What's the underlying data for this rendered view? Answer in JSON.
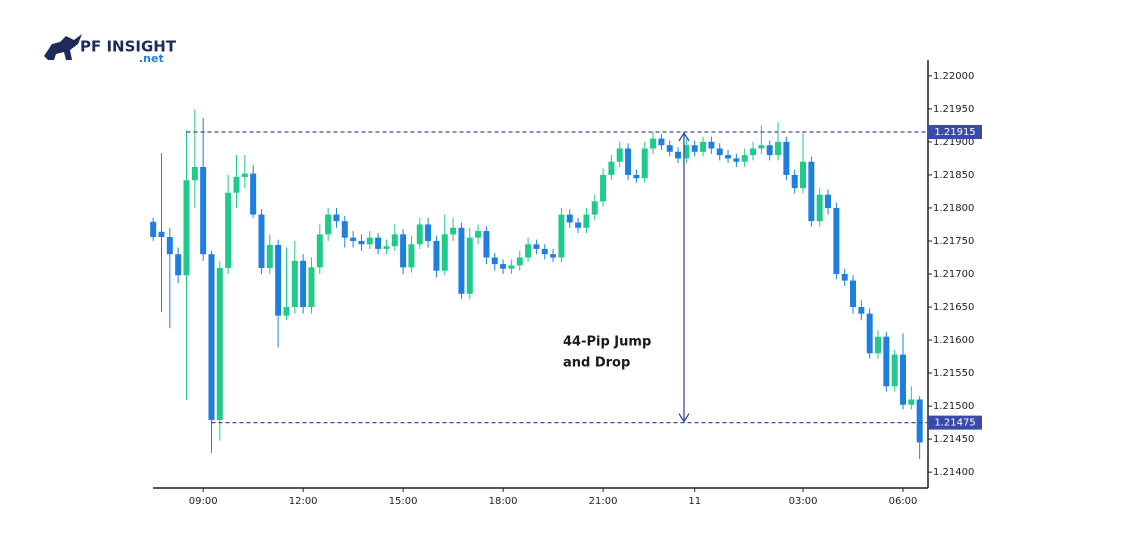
{
  "logo": {
    "name": "PF INSIGHT",
    "suffix": ".net"
  },
  "chart_data": {
    "type": "candlestick",
    "up_color": "#1fca8a",
    "down_color": "#1f7fe0",
    "ylim": [
      1.21376,
      1.22024
    ],
    "yticks": [
      {
        "value": 1.214,
        "label": "1.21400"
      },
      {
        "value": 1.2145,
        "label": "1.21450"
      },
      {
        "value": 1.215,
        "label": "1.21500"
      },
      {
        "value": 1.2155,
        "label": "1.21550"
      },
      {
        "value": 1.216,
        "label": "1.21600"
      },
      {
        "value": 1.2165,
        "label": "1.21650"
      },
      {
        "value": 1.217,
        "label": "1.21700"
      },
      {
        "value": 1.2175,
        "label": "1.21750"
      },
      {
        "value": 1.218,
        "label": "1.21800"
      },
      {
        "value": 1.2185,
        "label": "1.21850"
      },
      {
        "value": 1.219,
        "label": "1.21900"
      },
      {
        "value": 1.2195,
        "label": "1.21950"
      },
      {
        "value": 1.22,
        "label": "1.22000"
      }
    ],
    "xlim": [
      -0.5,
      93
    ],
    "xticks": [
      {
        "value": 6,
        "label": "09:00"
      },
      {
        "value": 18,
        "label": "12:00"
      },
      {
        "value": 30,
        "label": "15:00"
      },
      {
        "value": 42,
        "label": "18:00"
      },
      {
        "value": 54,
        "label": "21:00"
      },
      {
        "value": 65,
        "label": "11"
      },
      {
        "value": 78,
        "label": "03:00"
      },
      {
        "value": 90,
        "label": "06:00"
      }
    ],
    "levels": [
      {
        "value": 1.21915,
        "label": "1.21915",
        "color": "#3a4aa8"
      },
      {
        "value": 1.21475,
        "label": "1.21475",
        "color": "#3a4aa8"
      }
    ],
    "annotation": [
      "44-Pip Jump",
      "and Drop"
    ],
    "ohlc": [
      [
        1.21779,
        1.21785,
        1.2175,
        1.21756
      ],
      [
        1.21764,
        1.21883,
        1.21642,
        1.21756
      ],
      [
        1.21756,
        1.2177,
        1.21618,
        1.2173
      ],
      [
        1.2173,
        1.2174,
        1.21686,
        1.21698
      ],
      [
        1.21698,
        1.21918,
        1.21509,
        1.21842
      ],
      [
        1.21842,
        1.21949,
        1.218,
        1.21862
      ],
      [
        1.21862,
        1.21936,
        1.2172,
        1.2173
      ],
      [
        1.2173,
        1.21735,
        1.21429,
        1.21479
      ],
      [
        1.21479,
        1.2172,
        1.21448,
        1.21709
      ],
      [
        1.21709,
        1.2185,
        1.217,
        1.21823
      ],
      [
        1.21823,
        1.2188,
        1.218,
        1.21847
      ],
      [
        1.21847,
        1.2188,
        1.2183,
        1.21852
      ],
      [
        1.21852,
        1.21865,
        1.21785,
        1.2179
      ],
      [
        1.2179,
        1.21798,
        1.217,
        1.21709
      ],
      [
        1.21709,
        1.2176,
        1.217,
        1.21744
      ],
      [
        1.21744,
        1.21752,
        1.21589,
        1.21637
      ],
      [
        1.21637,
        1.2174,
        1.2163,
        1.2165
      ],
      [
        1.2165,
        1.2175,
        1.2164,
        1.2172
      ],
      [
        1.2172,
        1.2173,
        1.2164,
        1.2165
      ],
      [
        1.2165,
        1.21725,
        1.2164,
        1.2171
      ],
      [
        1.2171,
        1.21775,
        1.217,
        1.2176
      ],
      [
        1.2176,
        1.218,
        1.2175,
        1.2179
      ],
      [
        1.2179,
        1.218,
        1.2177,
        1.2178
      ],
      [
        1.2178,
        1.21788,
        1.2174,
        1.21755
      ],
      [
        1.21755,
        1.21765,
        1.2174,
        1.2175
      ],
      [
        1.2175,
        1.2176,
        1.21735,
        1.21745
      ],
      [
        1.21745,
        1.21765,
        1.21738,
        1.21755
      ],
      [
        1.21755,
        1.21762,
        1.2173,
        1.21738
      ],
      [
        1.21738,
        1.21752,
        1.2173,
        1.21742
      ],
      [
        1.21742,
        1.21775,
        1.21735,
        1.2176
      ],
      [
        1.2176,
        1.21768,
        1.217,
        1.2171
      ],
      [
        1.2171,
        1.21758,
        1.21702,
        1.21745
      ],
      [
        1.21745,
        1.21785,
        1.21738,
        1.21775
      ],
      [
        1.21775,
        1.21785,
        1.2174,
        1.2175
      ],
      [
        1.2175,
        1.21758,
        1.21695,
        1.21705
      ],
      [
        1.21705,
        1.2179,
        1.21698,
        1.2176
      ],
      [
        1.2176,
        1.21785,
        1.2175,
        1.2177
      ],
      [
        1.2177,
        1.21778,
        1.21662,
        1.2167
      ],
      [
        1.2167,
        1.2177,
        1.21662,
        1.21755
      ],
      [
        1.21755,
        1.21775,
        1.21745,
        1.21765
      ],
      [
        1.21765,
        1.21772,
        1.21715,
        1.21725
      ],
      [
        1.21725,
        1.21732,
        1.21705,
        1.21715
      ],
      [
        1.21715,
        1.21722,
        1.217,
        1.21708
      ],
      [
        1.21708,
        1.21722,
        1.217,
        1.21713
      ],
      [
        1.21713,
        1.21735,
        1.21705,
        1.21725
      ],
      [
        1.21725,
        1.21755,
        1.21718,
        1.21745
      ],
      [
        1.21745,
        1.21752,
        1.2173,
        1.21738
      ],
      [
        1.21738,
        1.21745,
        1.21722,
        1.2173
      ],
      [
        1.2173,
        1.21738,
        1.21718,
        1.21725
      ],
      [
        1.21725,
        1.218,
        1.21718,
        1.2179
      ],
      [
        1.2179,
        1.21798,
        1.2177,
        1.21778
      ],
      [
        1.21778,
        1.21785,
        1.21762,
        1.2177
      ],
      [
        1.2177,
        1.218,
        1.21762,
        1.2179
      ],
      [
        1.2179,
        1.2182,
        1.21782,
        1.2181
      ],
      [
        1.2181,
        1.2186,
        1.21802,
        1.2185
      ],
      [
        1.2185,
        1.2188,
        1.21842,
        1.2187
      ],
      [
        1.2187,
        1.219,
        1.21862,
        1.2189
      ],
      [
        1.2189,
        1.21898,
        1.21842,
        1.2185
      ],
      [
        1.2185,
        1.21858,
        1.21838,
        1.21845
      ],
      [
        1.21845,
        1.219,
        1.21838,
        1.2189
      ],
      [
        1.2189,
        1.21915,
        1.21882,
        1.21905
      ],
      [
        1.21905,
        1.21912,
        1.21888,
        1.21895
      ],
      [
        1.21895,
        1.21902,
        1.21878,
        1.21885
      ],
      [
        1.21885,
        1.21892,
        1.21868,
        1.21875
      ],
      [
        1.21875,
        1.21905,
        1.21868,
        1.21895
      ],
      [
        1.21895,
        1.21902,
        1.21878,
        1.21885
      ],
      [
        1.21885,
        1.21908,
        1.21878,
        1.219
      ],
      [
        1.219,
        1.21908,
        1.21882,
        1.2189
      ],
      [
        1.2189,
        1.21898,
        1.21872,
        1.2188
      ],
      [
        1.2188,
        1.21888,
        1.21868,
        1.21875
      ],
      [
        1.21875,
        1.21882,
        1.21862,
        1.2187
      ],
      [
        1.2187,
        1.2189,
        1.21862,
        1.2188
      ],
      [
        1.2188,
        1.219,
        1.21872,
        1.2189
      ],
      [
        1.2189,
        1.21925,
        1.21882,
        1.21895
      ],
      [
        1.21895,
        1.21902,
        1.21872,
        1.2188
      ],
      [
        1.2188,
        1.2193,
        1.21872,
        1.219
      ],
      [
        1.219,
        1.21908,
        1.21842,
        1.2185
      ],
      [
        1.2185,
        1.21858,
        1.21822,
        1.2183
      ],
      [
        1.2183,
        1.21915,
        1.21822,
        1.2187
      ],
      [
        1.2187,
        1.21878,
        1.21772,
        1.2178
      ],
      [
        1.2178,
        1.2183,
        1.21772,
        1.2182
      ],
      [
        1.2182,
        1.21828,
        1.2179,
        1.218
      ],
      [
        1.218,
        1.21808,
        1.21692,
        1.217
      ],
      [
        1.217,
        1.21708,
        1.21682,
        1.2169
      ],
      [
        1.2169,
        1.21698,
        1.2164,
        1.2165
      ],
      [
        1.2165,
        1.2166,
        1.2163,
        1.2164
      ],
      [
        1.2164,
        1.21648,
        1.21572,
        1.2158
      ],
      [
        1.2158,
        1.21615,
        1.21572,
        1.21605
      ],
      [
        1.21605,
        1.21612,
        1.21522,
        1.2153
      ],
      [
        1.2153,
        1.21585,
        1.21522,
        1.21578
      ],
      [
        1.21578,
        1.2161,
        1.21495,
        1.21502
      ],
      [
        1.21502,
        1.2153,
        1.21495,
        1.2151
      ],
      [
        1.2151,
        1.21515,
        1.2142,
        1.21445
      ]
    ]
  }
}
